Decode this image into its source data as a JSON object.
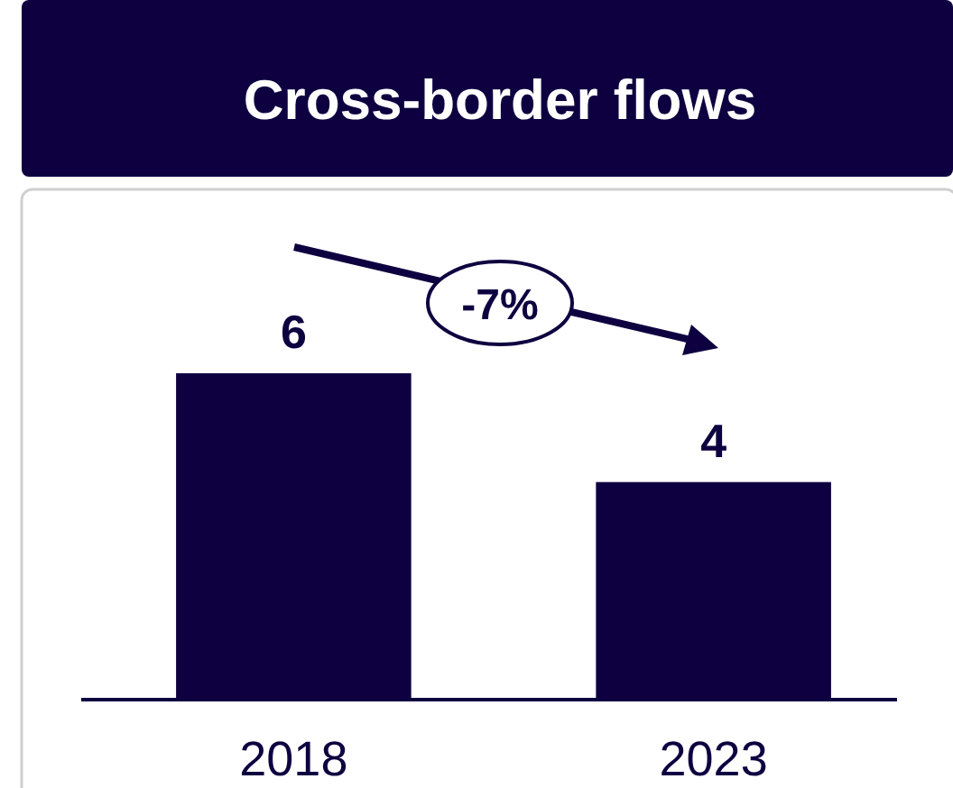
{
  "chart_data": {
    "type": "bar",
    "title": "Cross-border flows",
    "categories": [
      "2018",
      "2023"
    ],
    "values": [
      6,
      4
    ],
    "color": "#0e0040",
    "data_labels": true,
    "annotations": [
      "-7%"
    ]
  }
}
